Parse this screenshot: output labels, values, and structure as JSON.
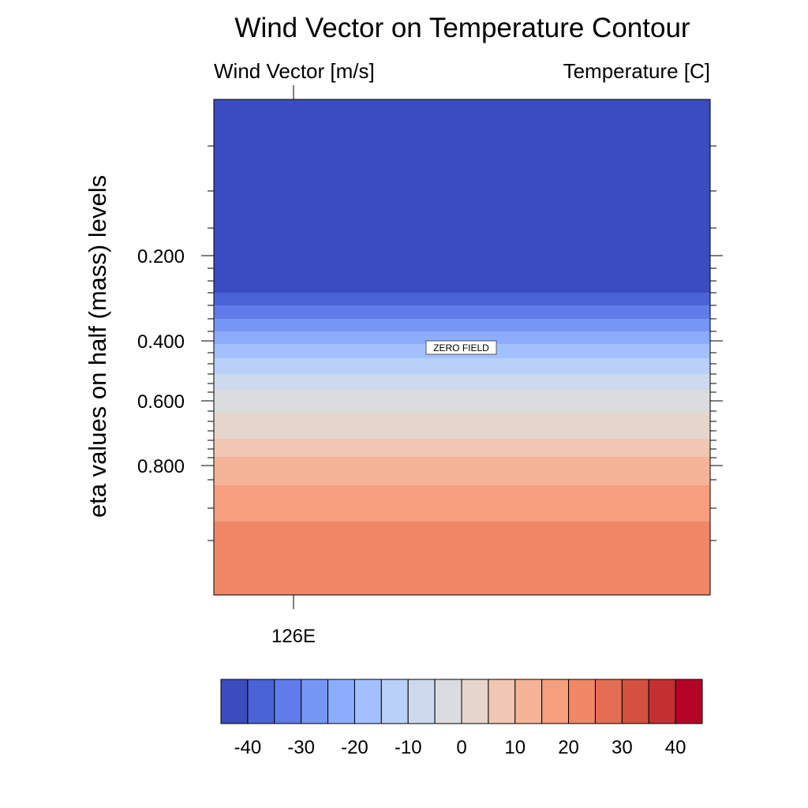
{
  "chart_data": {
    "type": "heatmap",
    "title": "Wind Vector on Temperature Contour",
    "left_subtitle": "Wind Vector [m/s]",
    "right_subtitle": "Temperature [C]",
    "ylabel": "eta values on half (mass) levels",
    "xlabel": "",
    "x_tick_labels": [
      "126E"
    ],
    "y_axis": {
      "reversed": true,
      "scale": "irregular (model levels)",
      "tick_labels": [
        "0.200",
        "0.400",
        "0.600",
        "0.800"
      ],
      "tick_values": [
        0.2,
        0.4,
        0.6,
        0.8
      ]
    },
    "annotation": "ZERO FIELD",
    "temperature_bands_top_to_bottom": [
      {
        "level_range": "top to ~0.27",
        "value_range": [
          -45,
          -40
        ]
      },
      {
        "level_range": "~0.27-0.30",
        "value_range": [
          -40,
          -35
        ]
      },
      {
        "level_range": "~0.30-0.33",
        "value_range": [
          -35,
          -30
        ]
      },
      {
        "level_range": "~0.33-0.36",
        "value_range": [
          -30,
          -25
        ]
      },
      {
        "level_range": "~0.36-0.40",
        "value_range": [
          -25,
          -20
        ]
      },
      {
        "level_range": "~0.40-0.44",
        "value_range": [
          -20,
          -15
        ]
      },
      {
        "level_range": "~0.44-0.50",
        "value_range": [
          -15,
          -10
        ]
      },
      {
        "level_range": "~0.50-0.56",
        "value_range": [
          -10,
          -5
        ]
      },
      {
        "level_range": "~0.56-0.64",
        "value_range": [
          -5,
          0
        ]
      },
      {
        "level_range": "~0.64-0.73",
        "value_range": [
          0,
          5
        ]
      },
      {
        "level_range": "~0.73-0.79",
        "value_range": [
          5,
          10
        ]
      },
      {
        "level_range": "~0.79-0.87",
        "value_range": [
          10,
          15
        ]
      },
      {
        "level_range": "~0.87-0.94",
        "value_range": [
          15,
          20
        ]
      },
      {
        "level_range": "~0.94-bottom",
        "value_range": [
          20,
          25
        ]
      }
    ],
    "colorbar": {
      "colors": [
        "#3b4cc0",
        "#4a63d6",
        "#5f7ce8",
        "#7596f5",
        "#8cacfc",
        "#a3c0fe",
        "#b9d0f9",
        "#cdd9ec",
        "#dbdcdd",
        "#e6d6cc",
        "#efc7b2",
        "#f5b497",
        "#f59f7f",
        "#f08767",
        "#e36e54",
        "#d45041",
        "#c43032",
        "#b40426"
      ],
      "tick_labels": [
        "-40",
        "-30",
        "-20",
        "-10",
        "0",
        "10",
        "20",
        "30",
        "40"
      ]
    }
  }
}
